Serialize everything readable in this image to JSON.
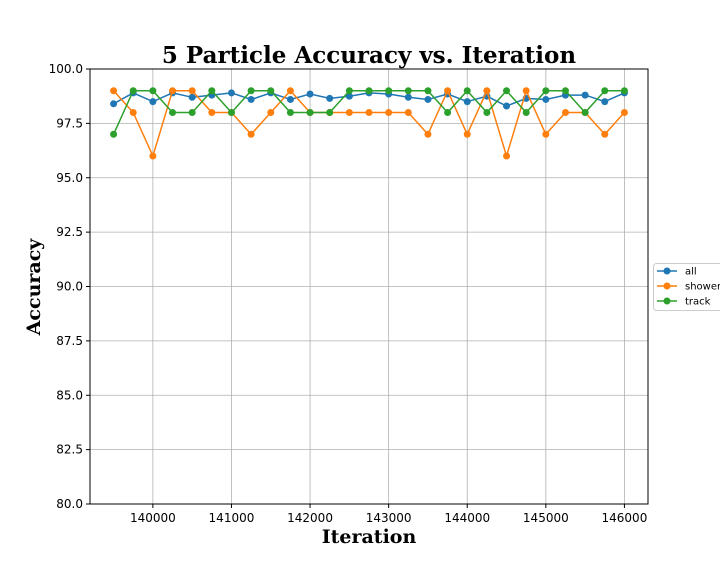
{
  "chart_data": {
    "type": "line",
    "title": "5 Particle Accuracy vs. Iteration",
    "xlabel": "Iteration",
    "ylabel": "Accuracy",
    "xlim": [
      139200,
      146300
    ],
    "ylim": [
      80.0,
      100.0
    ],
    "xticks": [
      140000,
      141000,
      142000,
      143000,
      144000,
      145000,
      146000
    ],
    "yticks": [
      80.0,
      82.5,
      85.0,
      87.5,
      90.0,
      92.5,
      95.0,
      97.5,
      100.0
    ],
    "grid": true,
    "legend_position": "right",
    "x": [
      139500,
      139750,
      140000,
      140250,
      140500,
      140750,
      141000,
      141250,
      141500,
      141750,
      142000,
      142250,
      142500,
      142750,
      143000,
      143250,
      143500,
      143750,
      144000,
      144250,
      144500,
      144750,
      145000,
      145250,
      145500,
      145750,
      146000
    ],
    "series": [
      {
        "name": "all",
        "color": "#1f77b4",
        "values": [
          98.4,
          98.9,
          98.5,
          98.9,
          98.7,
          98.8,
          98.9,
          98.6,
          98.9,
          98.6,
          98.85,
          98.65,
          98.75,
          98.9,
          98.85,
          98.7,
          98.6,
          98.85,
          98.5,
          98.75,
          98.3,
          98.65,
          98.6,
          98.8,
          98.8,
          98.5,
          98.9
        ]
      },
      {
        "name": "shower",
        "color": "#ff7f0e",
        "values": [
          99,
          98,
          96,
          99,
          99,
          98,
          98,
          97,
          98,
          99,
          98,
          98,
          98,
          98,
          98,
          98,
          97,
          99,
          97,
          99,
          96,
          99,
          97,
          98,
          98,
          97,
          98
        ]
      },
      {
        "name": "track",
        "color": "#2ca02c",
        "values": [
          97,
          99,
          99,
          98,
          98,
          99,
          98,
          99,
          99,
          98,
          98,
          98,
          99,
          99,
          99,
          99,
          99,
          98,
          99,
          98,
          99,
          98,
          99,
          99,
          98,
          99,
          99
        ]
      }
    ]
  }
}
